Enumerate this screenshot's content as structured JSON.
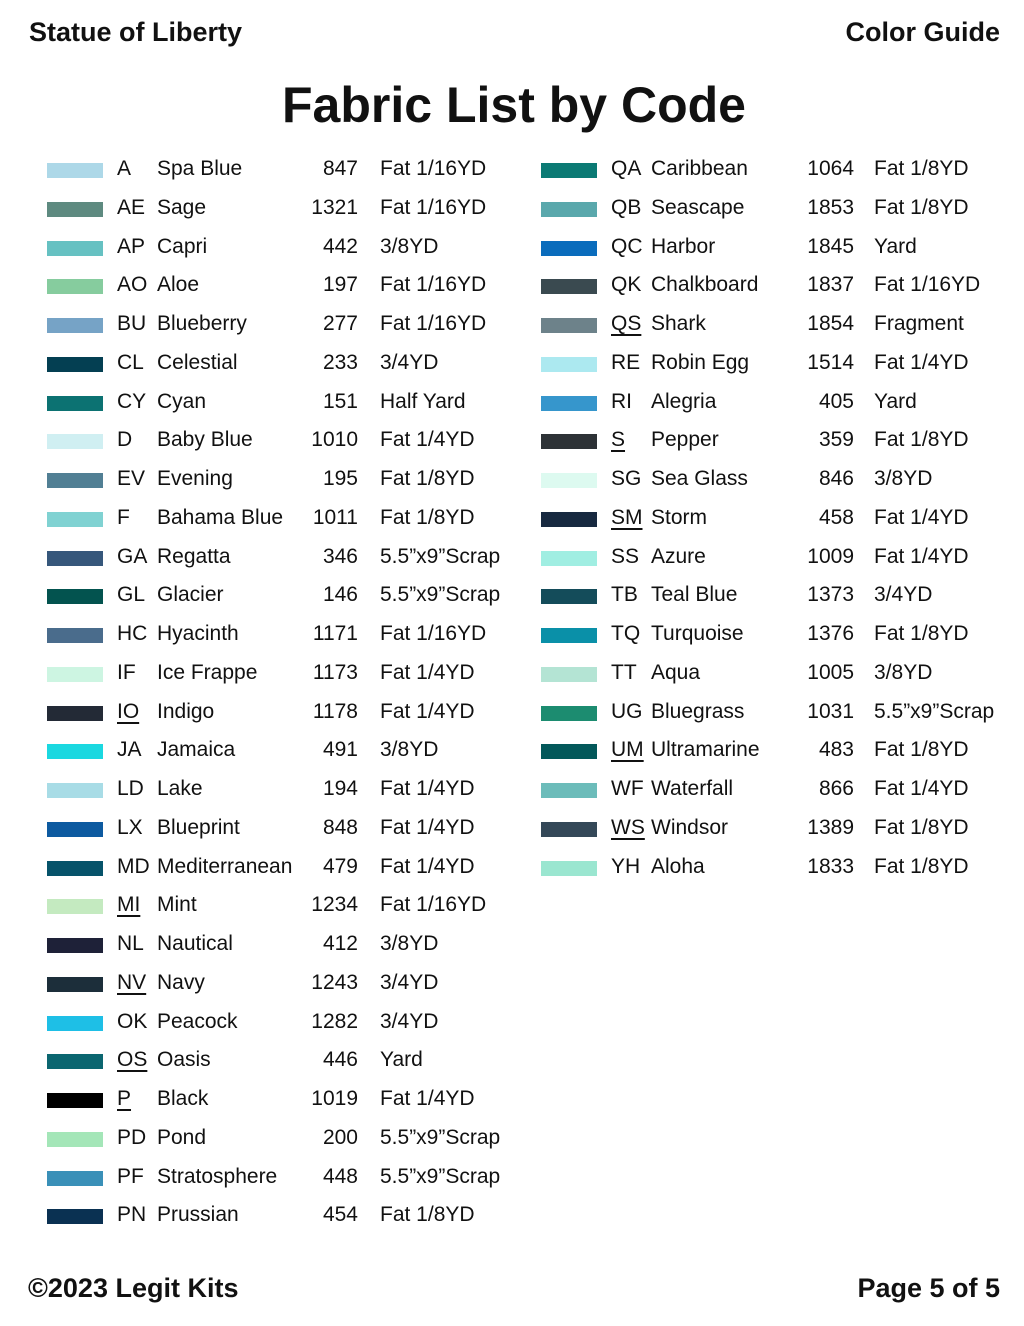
{
  "header": {
    "left": "Statue of Liberty",
    "right": "Color Guide"
  },
  "title": "Fabric List by Code",
  "footer": {
    "left": "©2023 Legit Kits",
    "right": "Page 5 of 5"
  },
  "left_column": [
    {
      "code": "A",
      "name": "Spa Blue",
      "number": "847",
      "size": "Fat 1/16YD",
      "color": "#add8e8",
      "underlined": false
    },
    {
      "code": "AE",
      "name": "Sage",
      "number": "1321",
      "size": "Fat 1/16YD",
      "color": "#5e8a80",
      "underlined": false
    },
    {
      "code": "AP",
      "name": "Capri",
      "number": "442",
      "size": "3/8YD",
      "color": "#66c1c2",
      "underlined": false
    },
    {
      "code": "AO",
      "name": "Aloe",
      "number": "197",
      "size": "Fat 1/16YD",
      "color": "#86cc9e",
      "underlined": false
    },
    {
      "code": "BU",
      "name": "Blueberry",
      "number": "277",
      "size": "Fat 1/16YD",
      "color": "#76a3c6",
      "underlined": false
    },
    {
      "code": "CL",
      "name": "Celestial",
      "number": "233",
      "size": "3/4YD",
      "color": "#043f52",
      "underlined": false
    },
    {
      "code": "CY",
      "name": "Cyan",
      "number": "151",
      "size": "Half Yard",
      "color": "#0c7272",
      "underlined": false
    },
    {
      "code": "D",
      "name": "Baby Blue",
      "number": "1010",
      "size": "Fat 1/4YD",
      "color": "#d0eff2",
      "underlined": false
    },
    {
      "code": "EV",
      "name": "Evening",
      "number": "195",
      "size": "Fat 1/8YD",
      "color": "#517f94",
      "underlined": false
    },
    {
      "code": "F",
      "name": "Bahama Blue",
      "number": "1011",
      "size": "Fat 1/8YD",
      "color": "#80d2d2",
      "underlined": false
    },
    {
      "code": "GA",
      "name": "Regatta",
      "number": "346",
      "size": "5.5”x9”Scrap",
      "color": "#36577b",
      "underlined": false
    },
    {
      "code": "GL",
      "name": "Glacier",
      "number": "146",
      "size": "5.5”x9”Scrap",
      "color": "#03534f",
      "underlined": false
    },
    {
      "code": "HC",
      "name": "Hyacinth",
      "number": "1171",
      "size": "Fat 1/16YD",
      "color": "#4a6c8c",
      "underlined": false
    },
    {
      "code": "IF",
      "name": "Ice Frappe",
      "number": "1173",
      "size": "Fat 1/4YD",
      "color": "#cdf5e2",
      "underlined": false
    },
    {
      "code": "IO",
      "name": "Indigo",
      "number": "1178",
      "size": "Fat 1/4YD",
      "color": "#232a36",
      "underlined": true
    },
    {
      "code": "JA",
      "name": "Jamaica",
      "number": "491",
      "size": "3/8YD",
      "color": "#1ad8e0",
      "underlined": false
    },
    {
      "code": "LD",
      "name": "Lake",
      "number": "194",
      "size": "Fat 1/4YD",
      "color": "#a8dce6",
      "underlined": false
    },
    {
      "code": "LX",
      "name": "Blueprint",
      "number": "848",
      "size": "Fat 1/4YD",
      "color": "#0d5aa0",
      "underlined": false
    },
    {
      "code": "MD",
      "name": "Mediterranean",
      "number": "479",
      "size": "Fat 1/4YD",
      "color": "#06536a",
      "underlined": false
    },
    {
      "code": "MI",
      "name": "Mint",
      "number": "1234",
      "size": "Fat 1/16YD",
      "color": "#c4eac0",
      "underlined": true
    },
    {
      "code": "NL",
      "name": "Nautical",
      "number": "412",
      "size": "3/8YD",
      "color": "#1e2138",
      "underlined": false
    },
    {
      "code": "NV",
      "name": "Navy",
      "number": "1243",
      "size": "3/4YD",
      "color": "#1c2e3a",
      "underlined": true
    },
    {
      "code": "OK",
      "name": "Peacock",
      "number": "1282",
      "size": "3/4YD",
      "color": "#1ebfe6",
      "underlined": false
    },
    {
      "code": "OS",
      "name": "Oasis",
      "number": "446",
      "size": "Yard",
      "color": "#0b6670",
      "underlined": true
    },
    {
      "code": "P",
      "name": "Black",
      "number": "1019",
      "size": "Fat 1/4YD",
      "color": "#000000",
      "underlined": true
    },
    {
      "code": "PD",
      "name": "Pond",
      "number": "200",
      "size": "5.5”x9”Scrap",
      "color": "#a4e6b8",
      "underlined": false
    },
    {
      "code": "PF",
      "name": "Stratosphere",
      "number": "448",
      "size": "5.5”x9”Scrap",
      "color": "#3a90b8",
      "underlined": false
    },
    {
      "code": "PN",
      "name": "Prussian",
      "number": "454",
      "size": "Fat 1/8YD",
      "color": "#0a3152",
      "underlined": false
    }
  ],
  "right_column": [
    {
      "code": "QA",
      "name": "Caribbean",
      "number": "1064",
      "size": "Fat 1/8YD",
      "color": "#0b7a74",
      "underlined": false
    },
    {
      "code": "QB",
      "name": "Seascape",
      "number": "1853",
      "size": "Fat 1/8YD",
      "color": "#5aa8ac",
      "underlined": false
    },
    {
      "code": "QC",
      "name": "Harbor",
      "number": "1845",
      "size": "Yard",
      "color": "#0a6cbc",
      "underlined": false
    },
    {
      "code": "QK",
      "name": "Chalkboard",
      "number": "1837",
      "size": "Fat 1/16YD",
      "color": "#3a4a50",
      "underlined": false
    },
    {
      "code": "QS",
      "name": "Shark",
      "number": "1854",
      "size": "Fragment",
      "color": "#6d828a",
      "underlined": true
    },
    {
      "code": "RE",
      "name": "Robin Egg",
      "number": "1514",
      "size": "Fat 1/4YD",
      "color": "#ace9f0",
      "underlined": false
    },
    {
      "code": "RI",
      "name": "Alegria",
      "number": "405",
      "size": "Yard",
      "color": "#3696cc",
      "underlined": false
    },
    {
      "code": "S",
      "name": "Pepper",
      "number": "359",
      "size": "Fat 1/8YD",
      "color": "#2d3236",
      "underlined": true
    },
    {
      "code": "SG",
      "name": "Sea Glass",
      "number": "846",
      "size": "3/8YD",
      "color": "#ddfaf0",
      "underlined": false
    },
    {
      "code": "SM",
      "name": "Storm",
      "number": "458",
      "size": "Fat 1/4YD",
      "color": "#172940",
      "underlined": true
    },
    {
      "code": "SS",
      "name": "Azure",
      "number": "1009",
      "size": "Fat 1/4YD",
      "color": "#a0eee2",
      "underlined": false
    },
    {
      "code": "TB",
      "name": "Teal Blue",
      "number": "1373",
      "size": "3/4YD",
      "color": "#144c5a",
      "underlined": false
    },
    {
      "code": "TQ",
      "name": "Turquoise",
      "number": "1376",
      "size": "Fat 1/8YD",
      "color": "#0a90a8",
      "underlined": false
    },
    {
      "code": "TT",
      "name": "Aqua",
      "number": "1005",
      "size": "3/8YD",
      "color": "#b4e4d4",
      "underlined": false
    },
    {
      "code": "UG",
      "name": "Bluegrass",
      "number": "1031",
      "size": "5.5”x9”Scrap",
      "color": "#1c8c70",
      "underlined": false
    },
    {
      "code": "UM",
      "name": "Ultramarine",
      "number": "483",
      "size": "Fat 1/8YD",
      "color": "#03585a",
      "underlined": true
    },
    {
      "code": "WF",
      "name": "Waterfall",
      "number": "866",
      "size": "Fat 1/4YD",
      "color": "#6cbcba",
      "underlined": false
    },
    {
      "code": "WS",
      "name": "Windsor",
      "number": "1389",
      "size": "Fat 1/8YD",
      "color": "#344858",
      "underlined": true
    },
    {
      "code": "YH",
      "name": "Aloha",
      "number": "1833",
      "size": "Fat 1/8YD",
      "color": "#9ae6d0",
      "underlined": false
    }
  ]
}
